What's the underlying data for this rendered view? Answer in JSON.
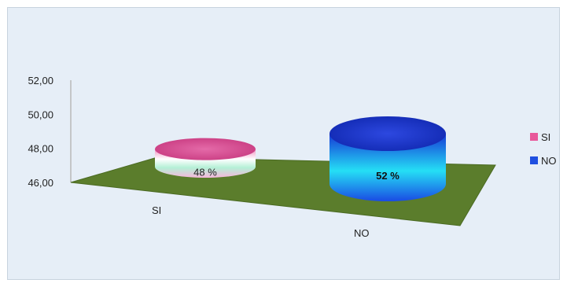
{
  "chart_data": {
    "type": "bar",
    "style": "3d-cylinder",
    "categories": [
      "SI",
      "NO"
    ],
    "values": [
      48,
      52
    ],
    "data_labels": [
      "48 %",
      "52 %"
    ],
    "y_ticks": [
      "46,00",
      "48,00",
      "50,00",
      "52,00"
    ],
    "ylim": [
      46,
      52
    ],
    "legend_position": "right",
    "legend": [
      {
        "label": "SI",
        "color": "#e8579a"
      },
      {
        "label": "NO",
        "color": "#1f4fe0"
      }
    ],
    "colors": {
      "SI_top": "#d9468c",
      "SI_body_light": "#ffffff",
      "SI_body_mid": "#b7f0d8",
      "SI_body_pink": "#f7a8cf",
      "NO_top": "#1330c8",
      "NO_body_dark": "#1d4ee6",
      "NO_body_light": "#22e1f5",
      "floor": "#5b7d2c",
      "background": "#e6eef7"
    }
  }
}
